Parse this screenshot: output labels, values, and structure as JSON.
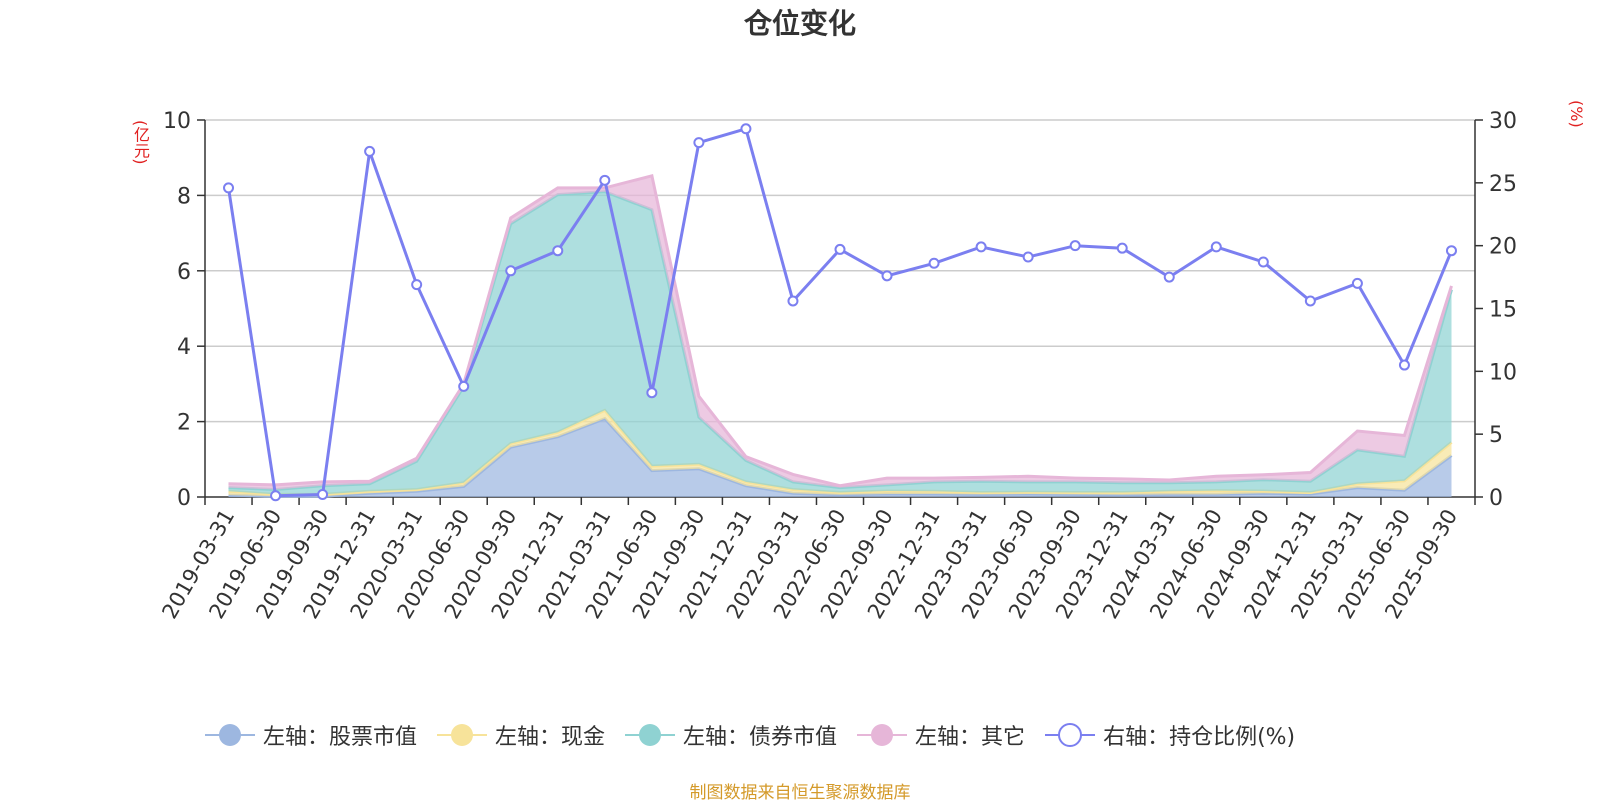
{
  "chart_data": {
    "type": "area",
    "title": "仓位变化",
    "categories": [
      "2019-03-31",
      "2019-06-30",
      "2019-09-30",
      "2019-12-31",
      "2020-03-31",
      "2020-06-30",
      "2020-09-30",
      "2020-12-31",
      "2021-03-31",
      "2021-06-30",
      "2021-09-30",
      "2021-12-31",
      "2022-03-31",
      "2022-06-30",
      "2022-09-30",
      "2022-12-31",
      "2023-03-31",
      "2023-06-30",
      "2023-09-30",
      "2023-12-31",
      "2024-03-31",
      "2024-06-30",
      "2024-09-30",
      "2024-12-31",
      "2025-03-31",
      "2025-06-30",
      "2025-09-30"
    ],
    "y_left_unit": "(亿元)",
    "y_right_unit": "(%)",
    "y_left_ticks": [
      "0",
      "2",
      "4",
      "6",
      "8",
      "10"
    ],
    "y_right_ticks": [
      "0",
      "5",
      "10",
      "15",
      "20",
      "25",
      "30"
    ],
    "ylim_left": [
      0,
      10
    ],
    "ylim_right": [
      0,
      30
    ],
    "stacked": true,
    "grid": true,
    "legend_position": "bottom",
    "series": [
      {
        "name": "左轴：股票市值",
        "axis": "left",
        "kind": "area",
        "color": "#9db7e0",
        "values": [
          0.05,
          0.02,
          0.02,
          0.1,
          0.15,
          0.28,
          1.32,
          1.6,
          2.08,
          0.7,
          0.75,
          0.3,
          0.1,
          0.06,
          0.08,
          0.08,
          0.07,
          0.08,
          0.07,
          0.06,
          0.07,
          0.07,
          0.1,
          0.08,
          0.25,
          0.18,
          1.1
        ]
      },
      {
        "name": "左轴：现金",
        "axis": "left",
        "kind": "area",
        "color": "#f7e39a",
        "values": [
          0.1,
          0.05,
          0.05,
          0.05,
          0.05,
          0.1,
          0.1,
          0.12,
          0.22,
          0.12,
          0.12,
          0.1,
          0.1,
          0.06,
          0.08,
          0.07,
          0.05,
          0.05,
          0.05,
          0.06,
          0.08,
          0.1,
          0.06,
          0.04,
          0.1,
          0.25,
          0.35
        ]
      },
      {
        "name": "左轴：债券市值",
        "axis": "left",
        "kind": "area",
        "color": "#8fd2d2",
        "values": [
          0.1,
          0.13,
          0.23,
          0.2,
          0.75,
          2.55,
          5.83,
          6.3,
          5.8,
          6.8,
          1.25,
          0.57,
          0.2,
          0.13,
          0.16,
          0.25,
          0.3,
          0.27,
          0.28,
          0.26,
          0.23,
          0.23,
          0.3,
          0.3,
          0.9,
          0.65,
          4.05
        ]
      },
      {
        "name": "左轴：其它",
        "axis": "left",
        "kind": "area",
        "color": "#e6b6d8",
        "values": [
          0.1,
          0.12,
          0.1,
          0.07,
          0.08,
          0.07,
          0.15,
          0.18,
          0.1,
          0.9,
          0.55,
          0.1,
          0.2,
          0.05,
          0.18,
          0.1,
          0.1,
          0.15,
          0.1,
          0.1,
          0.07,
          0.15,
          0.13,
          0.23,
          0.5,
          0.55,
          0.1
        ]
      },
      {
        "name": "右轴：持仓比例(%)",
        "axis": "right",
        "kind": "line",
        "color": "#7b7ff0",
        "values": [
          24.6,
          0.1,
          0.2,
          27.5,
          16.9,
          8.8,
          18.0,
          19.6,
          25.2,
          8.3,
          28.2,
          29.3,
          15.6,
          19.7,
          17.6,
          18.6,
          19.9,
          19.1,
          20.0,
          19.8,
          17.5,
          19.9,
          18.7,
          15.6,
          17.0,
          10.5,
          19.6
        ]
      }
    ]
  },
  "footer_note": "制图数据来自恒生聚源数据库"
}
